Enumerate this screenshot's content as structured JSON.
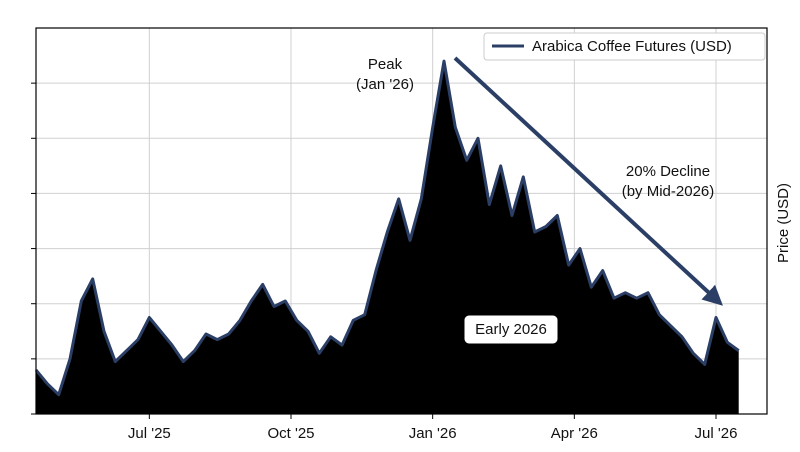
{
  "chart_data": {
    "type": "area",
    "y_label": "Price (USD)",
    "x": [
      2025.3,
      2025.32,
      2025.34,
      2025.36,
      2025.38,
      2025.4,
      2025.42,
      2025.44,
      2025.46,
      2025.48,
      2025.5,
      2025.52,
      2025.54,
      2025.56,
      2025.58,
      2025.6,
      2025.62,
      2025.64,
      2025.66,
      2025.68,
      2025.7,
      2025.72,
      2025.74,
      2025.76,
      2025.78,
      2025.8,
      2025.82,
      2025.84,
      2025.86,
      2025.88,
      2025.9,
      2025.92,
      2025.94,
      2025.96,
      2025.98,
      2026.0,
      2026.02,
      2026.04,
      2026.06,
      2026.08,
      2026.1,
      2026.12,
      2026.14,
      2026.16,
      2026.18,
      2026.2,
      2026.22,
      2026.24,
      2026.26,
      2026.28,
      2026.3,
      2026.32,
      2026.34,
      2026.36,
      2026.38,
      2026.4,
      2026.42,
      2026.44,
      2026.46,
      2026.48,
      2026.5,
      2026.52,
      2026.54
    ],
    "series": [
      {
        "name": "Arabica Coffee Futures (USD)",
        "color": "#2b3f66",
        "fill": "#000000",
        "values": [
          0.8,
          0.55,
          0.35,
          1.0,
          2.05,
          2.45,
          1.5,
          0.95,
          1.15,
          1.35,
          1.75,
          1.5,
          1.25,
          0.95,
          1.15,
          1.45,
          1.35,
          1.45,
          1.7,
          2.05,
          2.35,
          1.95,
          2.05,
          1.7,
          1.5,
          1.1,
          1.4,
          1.25,
          1.7,
          1.8,
          2.6,
          3.3,
          3.9,
          3.15,
          3.9,
          5.2,
          6.4,
          5.2,
          4.6,
          5.0,
          3.8,
          4.5,
          3.6,
          4.3,
          3.3,
          3.4,
          3.6,
          2.7,
          3.0,
          2.3,
          2.6,
          2.1,
          2.2,
          2.1,
          2.2,
          1.8,
          1.6,
          1.4,
          1.1,
          0.9,
          1.75,
          1.3,
          1.15
        ]
      }
    ],
    "xlim": [
      2025.3,
      2026.59
    ],
    "xticks": [
      {
        "value": 2025.5,
        "label": "Jul '25"
      },
      {
        "value": 2025.75,
        "label": "Oct '25"
      },
      {
        "value": 2026.0,
        "label": "Jan '26"
      },
      {
        "value": 2026.25,
        "label": "Apr '26"
      },
      {
        "value": 2026.5,
        "label": "Jul '26"
      }
    ],
    "ylim": [
      0,
      7
    ],
    "yticks": [
      0,
      1,
      2,
      3,
      4,
      5,
      6
    ],
    "grid": true,
    "legend": "upper right",
    "annotations": [
      [
        "Peak",
        "(Jan '26)"
      ],
      [
        "20% Decline",
        "(by Mid-2026)"
      ],
      [
        "Early 2026"
      ]
    ]
  }
}
